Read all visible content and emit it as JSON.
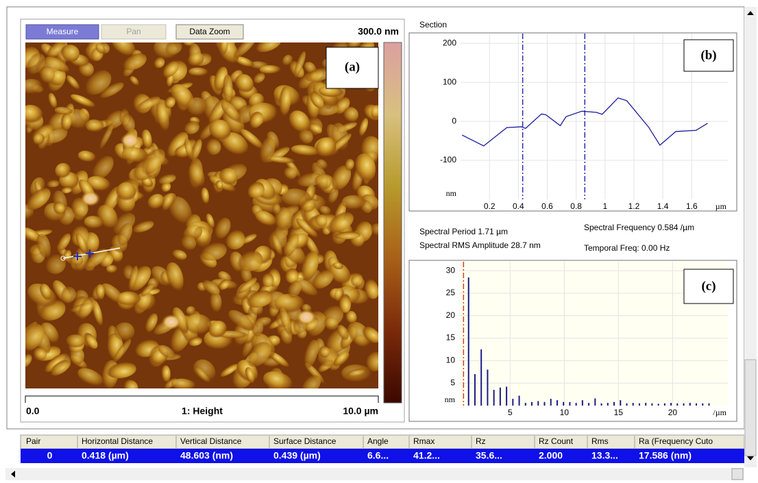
{
  "toolbar": {
    "buttons": [
      "Measure",
      "Pan",
      "Data Zoom"
    ]
  },
  "image": {
    "scale_max": "300.0 nm",
    "label": "(a)",
    "x_start": "0.0",
    "channel": "1: Height",
    "x_end": "10.0 µm"
  },
  "section": {
    "title": "Section",
    "label": "(b)",
    "chart": {
      "type": "line",
      "x": [
        0.01,
        0.16,
        0.32,
        0.42,
        0.45,
        0.56,
        0.59,
        0.69,
        0.73,
        0.84,
        0.94,
        0.98,
        1.09,
        1.15,
        1.3,
        1.38,
        1.49,
        1.63,
        1.71
      ],
      "values": [
        -35,
        -63,
        -16,
        -14,
        -18,
        19,
        17,
        -11,
        12,
        26,
        23,
        18,
        60,
        53,
        -14,
        -61,
        -26,
        -23,
        -5
      ],
      "color": "#1a1a9c",
      "xlim": [
        0,
        1.85
      ],
      "ylim": [
        -200,
        225
      ],
      "xticks": [
        0.2,
        0.4,
        0.6,
        0.8,
        1,
        1.2,
        1.4,
        1.6
      ],
      "yticks": [
        -100,
        0,
        100,
        200
      ],
      "x_unit": "µm",
      "y_unit": "nm",
      "cursors": [
        0.43,
        0.86
      ],
      "cursor_color": "#2a2ab8",
      "grid": true,
      "background": "#ffffff"
    }
  },
  "spectral_info": [
    "Spectral Period 1.71 µm",
    "Spectral Frequency 0.584 /µm",
    "Spectral RMS Amplitude 28.7 nm",
    "Temporal Freq: 0.00 Hz"
  ],
  "spectrum": {
    "label": "(c)",
    "chart": {
      "type": "bar",
      "x": [
        1.168,
        1.752,
        2.336,
        2.92,
        3.504,
        4.088,
        4.672,
        5.256,
        5.84,
        6.424,
        7.008,
        7.592,
        8.176,
        8.76,
        9.344,
        9.928,
        10.512,
        11.096,
        11.68,
        12.264,
        12.848,
        13.432,
        14.016,
        14.6,
        15.184,
        15.768,
        16.352,
        16.936,
        17.52,
        18.104,
        18.688,
        19.272,
        19.856,
        20.44,
        21.024,
        21.608,
        22.192,
        22.776,
        23.36
      ],
      "values": [
        28.5,
        7,
        12.5,
        8,
        3.5,
        4,
        4.2,
        1.5,
        2.2,
        0.6,
        0.8,
        1,
        0.8,
        1.5,
        1.2,
        0.8,
        0.8,
        0.6,
        1.2,
        0.6,
        1.6,
        0.5,
        0.6,
        0.8,
        1.2,
        0.5,
        0.6,
        0.5,
        0.6,
        0.5,
        0.4,
        0.5,
        0.6,
        0.5,
        0.5,
        0.6,
        0.5,
        0.5,
        0.5
      ],
      "color": "#1a1a8c",
      "xlim": [
        0.3,
        25.1
      ],
      "ylim": [
        0,
        32
      ],
      "xticks": [
        5,
        10,
        15,
        20
      ],
      "yticks": [
        5,
        10,
        15,
        20,
        25,
        30
      ],
      "x_unit": "/µm",
      "y_unit": "nm",
      "cursors": [
        0.7
      ],
      "cursor_color": "#d04020",
      "grid": true,
      "background": "#fffff2"
    }
  },
  "table": {
    "header": [
      "Pair",
      "Horizontal Distance",
      "Vertical Distance",
      "Surface Distance",
      "Angle",
      "Rmax",
      "Rz",
      "Rz Count",
      "Rms",
      "Ra (Frequency Cuto"
    ],
    "rows": [
      [
        "0",
        "0.418 (µm)",
        "48.603 (nm)",
        "0.439 (µm)",
        "6.6...",
        "41.2...",
        "35.6...",
        "2.000",
        "13.3...",
        "17.586 (nm)"
      ]
    ]
  }
}
